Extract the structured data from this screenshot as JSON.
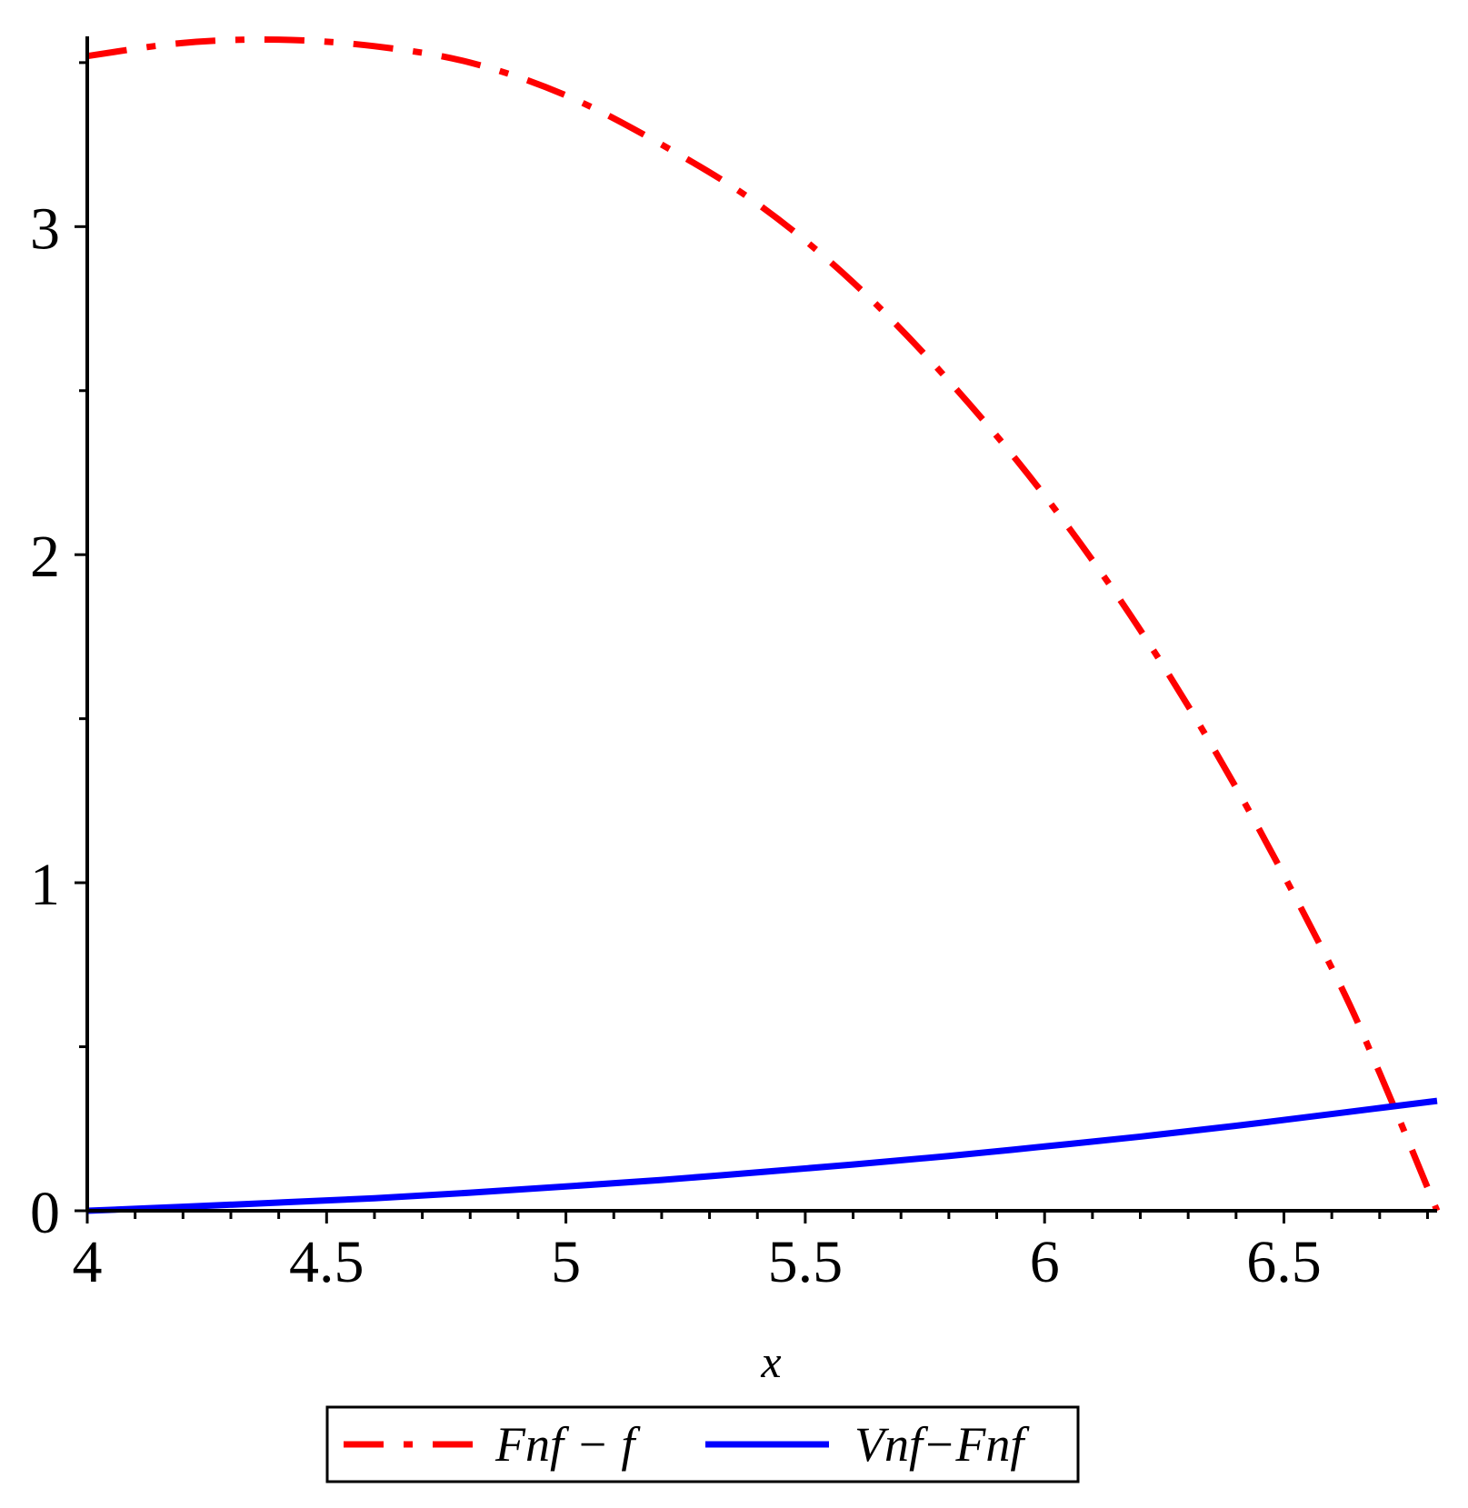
{
  "chart_data": {
    "type": "line",
    "title": "",
    "xlabel": "x",
    "ylabel": "",
    "xlim": [
      4,
      6.82
    ],
    "ylim": [
      0,
      3.58
    ],
    "xticks": [
      4,
      4.5,
      5,
      5.5,
      6,
      6.5
    ],
    "xtick_labels": [
      "4",
      "4.5",
      "5",
      "5.5",
      "6",
      "6.5"
    ],
    "xminor_step": 0.1,
    "yticks": [
      0,
      1,
      2,
      3
    ],
    "ytick_labels": [
      "0",
      "1",
      "2",
      "3"
    ],
    "yminor_step": 0.5,
    "grid": false,
    "legend_position": "bottom",
    "series": [
      {
        "name": "Fnf − f",
        "color": "#ff0000",
        "dash": "dash-dot",
        "x": [
          4.0,
          4.2,
          4.4,
          4.6,
          4.8,
          5.0,
          5.2,
          5.4,
          5.6,
          5.8,
          6.0,
          6.2,
          6.4,
          6.6,
          6.7,
          6.82
        ],
        "y": [
          3.52,
          3.56,
          3.57,
          3.55,
          3.5,
          3.4,
          3.25,
          3.07,
          2.83,
          2.53,
          2.18,
          1.77,
          1.29,
          0.74,
          0.42,
          0.0
        ]
      },
      {
        "name": "Vnf−Fnf",
        "color": "#0000ff",
        "dash": "solid",
        "x": [
          4.0,
          4.2,
          4.4,
          4.6,
          4.8,
          5.0,
          5.2,
          5.4,
          5.6,
          5.8,
          6.0,
          6.2,
          6.4,
          6.6,
          6.82
        ],
        "y": [
          0.0,
          0.012,
          0.025,
          0.038,
          0.055,
          0.074,
          0.094,
          0.117,
          0.141,
          0.167,
          0.196,
          0.226,
          0.259,
          0.295,
          0.335
        ]
      }
    ]
  }
}
